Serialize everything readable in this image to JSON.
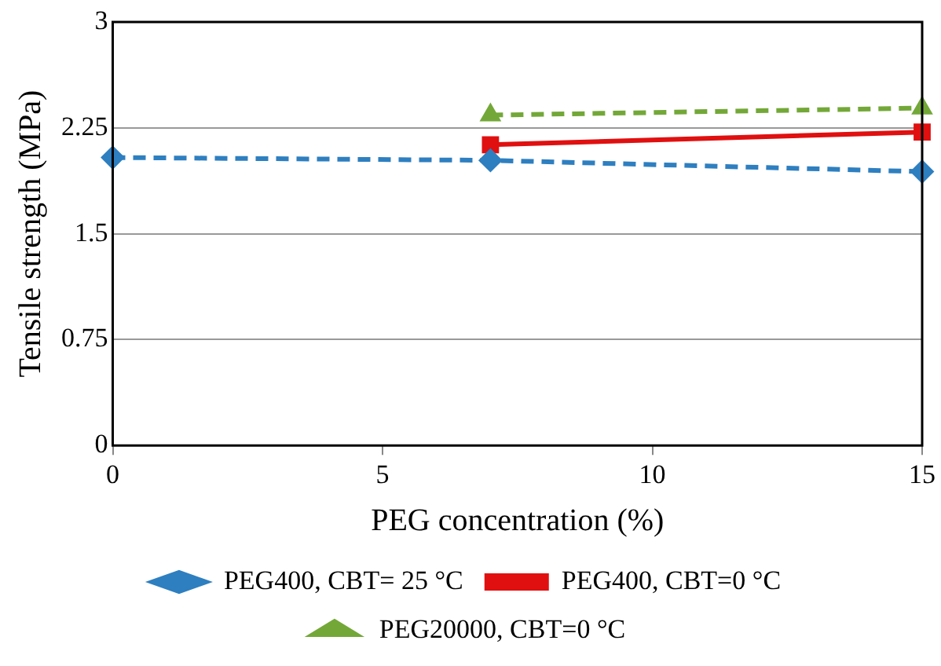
{
  "chart_data": {
    "type": "line",
    "xlabel": "PEG concentration (%)",
    "ylabel": "Tensile strength (MPa)",
    "xlim": [
      0,
      15
    ],
    "xticks": [
      0,
      5,
      10,
      15
    ],
    "ylim": [
      0,
      3
    ],
    "yticks": [
      0,
      0.75,
      1.5,
      2.25,
      3
    ],
    "grid": "y",
    "legend": "bottom",
    "series": [
      {
        "name": "PEG400, CBT= 25 °C",
        "color": "#2e7fc0",
        "x": [
          0,
          7,
          15
        ],
        "values": [
          2.04,
          2.02,
          1.94
        ],
        "marker": "diamond",
        "line_style": "dashed"
      },
      {
        "name": "PEG400, CBT=0 °C",
        "color": "#e01010",
        "x": [
          7,
          15
        ],
        "values": [
          2.13,
          2.22
        ],
        "marker": "square",
        "line_style": "solid"
      },
      {
        "name": "PEG20000, CBT=0 °C",
        "color": "#73a838",
        "x": [
          7,
          15
        ],
        "values": [
          2.34,
          2.39
        ],
        "marker": "triangle",
        "line_style": "dashed"
      }
    ]
  }
}
